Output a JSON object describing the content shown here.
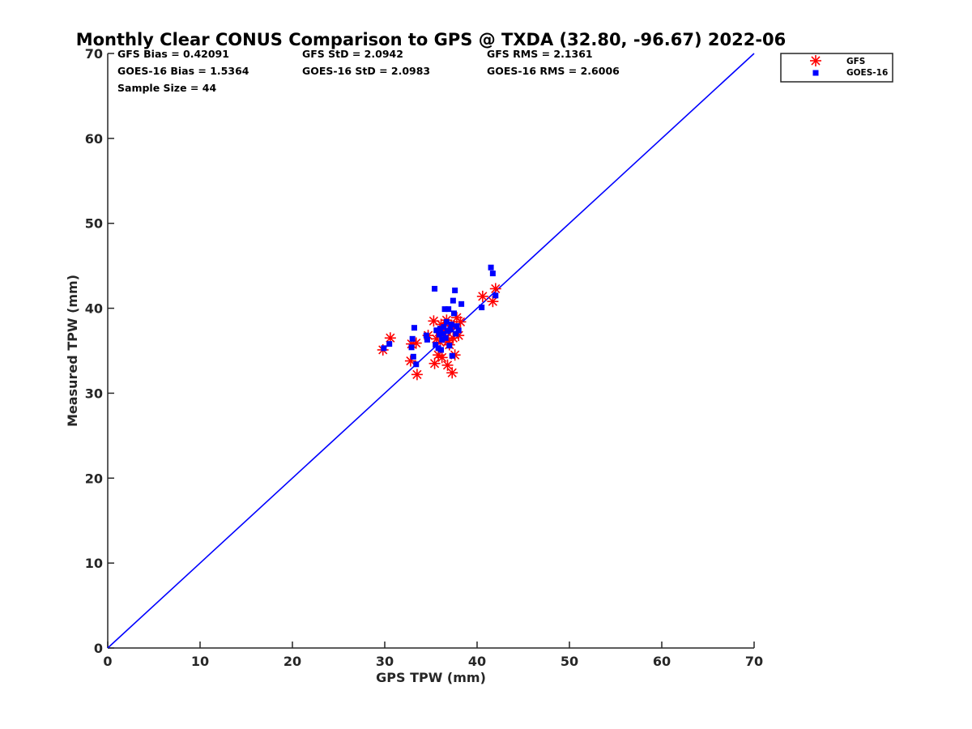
{
  "chart_data": {
    "type": "scatter",
    "title": "Monthly Clear CONUS Comparison to GPS @ TXDA (32.80, -96.67) 2022-06",
    "xlabel": "GPS TPW (mm)",
    "ylabel": "Measured TPW (mm)",
    "xlim": [
      0,
      70
    ],
    "ylim": [
      0,
      70
    ],
    "xticks": [
      "0",
      "10",
      "20",
      "30",
      "40",
      "50",
      "60",
      "70"
    ],
    "yticks": [
      "0",
      "10",
      "20",
      "30",
      "40",
      "50",
      "60",
      "70"
    ],
    "grid": false,
    "legend_position": "top-right, outside plot area",
    "reference_line": {
      "x": [
        0,
        70
      ],
      "y": [
        0,
        70
      ],
      "color": "#0000ff"
    },
    "stats": {
      "gfs_bias": "GFS Bias = 0.42091",
      "gfs_std": "GFS StD = 2.0942",
      "gfs_rms": "GFS RMS = 2.1361",
      "goes_bias": "GOES-16 Bias = 1.5364",
      "goes_std": "GOES-16 StD = 2.0983",
      "goes_rms": "GOES-16 RMS = 2.6006",
      "sample_size": "Sample Size = 44"
    },
    "series": [
      {
        "name": "GFS",
        "marker": "asterisk",
        "color": "#ff0000",
        "points": [
          [
            29.8,
            35.1
          ],
          [
            30.6,
            36.5
          ],
          [
            32.8,
            33.8
          ],
          [
            32.9,
            35.8
          ],
          [
            33.4,
            35.9
          ],
          [
            33.5,
            32.2
          ],
          [
            34.7,
            36.8
          ],
          [
            35.3,
            38.5
          ],
          [
            35.4,
            33.5
          ],
          [
            35.6,
            36.4
          ],
          [
            35.8,
            34.5
          ],
          [
            35.9,
            37.2
          ],
          [
            36.0,
            36.0
          ],
          [
            36.1,
            38.1
          ],
          [
            36.2,
            34.2
          ],
          [
            36.4,
            36.8
          ],
          [
            36.6,
            37.4
          ],
          [
            36.7,
            38.6
          ],
          [
            36.8,
            33.3
          ],
          [
            36.9,
            36.2
          ],
          [
            37.0,
            35.7
          ],
          [
            37.1,
            37.6
          ],
          [
            37.2,
            38.0
          ],
          [
            37.3,
            32.4
          ],
          [
            37.4,
            36.5
          ],
          [
            37.6,
            34.5
          ],
          [
            37.8,
            38.9
          ],
          [
            38.0,
            36.8
          ],
          [
            38.2,
            38.4
          ],
          [
            40.6,
            41.4
          ],
          [
            41.7,
            40.8
          ],
          [
            42.0,
            42.3
          ]
        ]
      },
      {
        "name": "GOES-16",
        "marker": "square",
        "color": "#0000ff",
        "points": [
          [
            29.9,
            35.3
          ],
          [
            30.5,
            35.8
          ],
          [
            32.9,
            35.4
          ],
          [
            33.0,
            36.4
          ],
          [
            33.1,
            34.3
          ],
          [
            33.2,
            37.7
          ],
          [
            33.4,
            33.4
          ],
          [
            34.5,
            36.8
          ],
          [
            34.6,
            36.3
          ],
          [
            35.4,
            42.3
          ],
          [
            35.5,
            35.7
          ],
          [
            35.6,
            37.4
          ],
          [
            35.8,
            35.3
          ],
          [
            35.9,
            36.9
          ],
          [
            36.0,
            37.6
          ],
          [
            36.1,
            35.1
          ],
          [
            36.2,
            36.3
          ],
          [
            36.3,
            37.0
          ],
          [
            36.4,
            37.8
          ],
          [
            36.5,
            39.9
          ],
          [
            36.6,
            36.5
          ],
          [
            36.7,
            38.4
          ],
          [
            36.8,
            37.3
          ],
          [
            36.9,
            39.9
          ],
          [
            37.0,
            35.6
          ],
          [
            37.1,
            37.5
          ],
          [
            37.2,
            38.1
          ],
          [
            37.3,
            34.4
          ],
          [
            37.4,
            40.9
          ],
          [
            37.5,
            39.4
          ],
          [
            37.6,
            42.1
          ],
          [
            37.7,
            37.0
          ],
          [
            37.8,
            37.9
          ],
          [
            38.0,
            37.4
          ],
          [
            38.3,
            40.5
          ],
          [
            40.5,
            40.1
          ],
          [
            41.5,
            44.8
          ],
          [
            41.7,
            44.1
          ],
          [
            42.0,
            41.5
          ]
        ]
      }
    ]
  }
}
